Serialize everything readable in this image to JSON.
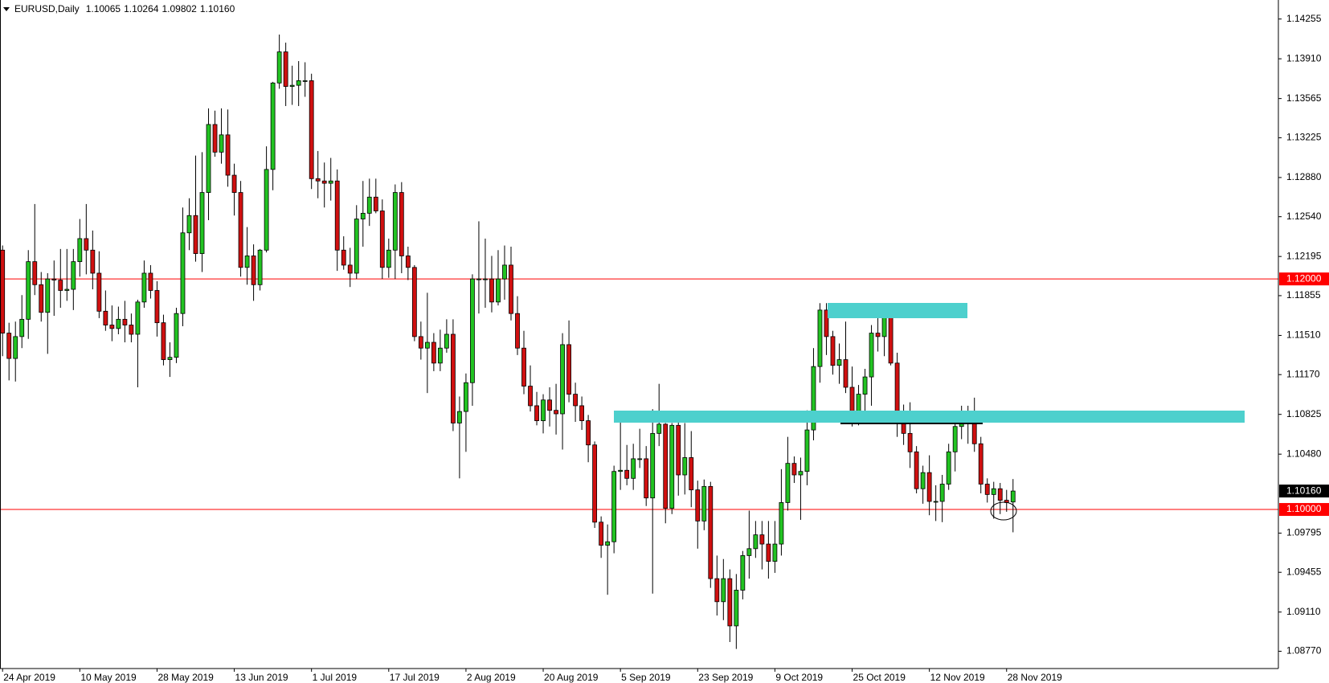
{
  "chart_data": {
    "type": "candlestick",
    "symbol": "EURUSD,Daily",
    "quote": [
      {
        "value": 1.10065,
        "label": "1.10065"
      },
      {
        "value": 1.10264,
        "label": "1.10264"
      },
      {
        "value": 1.09802,
        "label": "1.09802"
      },
      {
        "value": 1.1016,
        "label": "1.10160"
      }
    ],
    "up_color": "#22c322",
    "down_color": "#d01010",
    "ylim": [
      1.0862,
      1.1442
    ],
    "yticks": [
      1.14255,
      {
        "value": 1.1391,
        "label": "1.13910"
      },
      1.13565,
      1.13225,
      {
        "value": 1.1288,
        "label": "1.12880"
      },
      {
        "value": 1.1254,
        "label": "1.12540"
      },
      1.12195,
      1.11855,
      {
        "value": 1.1151,
        "label": "1.11510"
      },
      {
        "value": 1.1117,
        "label": "1.11170"
      },
      1.10825,
      {
        "value": 1.1048,
        "label": "1.10480"
      },
      1.09795,
      1.09455,
      {
        "value": 1.0911,
        "label": "1.09110"
      },
      {
        "value": 1.0877,
        "label": "1.08770"
      }
    ],
    "hlines": [
      {
        "value": 1.12,
        "label": "1.12000",
        "color": "#ff0000"
      },
      {
        "value": 1.1,
        "label": "1.10000",
        "color": "#ff0000"
      }
    ],
    "last_price": {
      "value": 1.1016,
      "label": "1.10160"
    },
    "categories": [
      "24 Apr 2019",
      null,
      null,
      null,
      null,
      null,
      null,
      null,
      null,
      null,
      null,
      null,
      "10 May 2019",
      null,
      null,
      null,
      null,
      null,
      null,
      null,
      null,
      null,
      null,
      null,
      "28 May 2019",
      null,
      null,
      null,
      null,
      null,
      null,
      null,
      null,
      null,
      null,
      null,
      "13 Jun 2019",
      null,
      null,
      null,
      null,
      null,
      null,
      null,
      null,
      null,
      null,
      null,
      "1 Jul 2019",
      null,
      null,
      null,
      null,
      null,
      null,
      null,
      null,
      null,
      null,
      null,
      "17 Jul 2019",
      null,
      null,
      null,
      null,
      null,
      null,
      null,
      null,
      null,
      null,
      null,
      "2 Aug 2019",
      null,
      null,
      null,
      null,
      null,
      null,
      null,
      null,
      null,
      null,
      null,
      "20 Aug 2019",
      null,
      null,
      null,
      null,
      null,
      null,
      null,
      null,
      null,
      null,
      null,
      "5 Sep 2019",
      null,
      null,
      null,
      null,
      null,
      null,
      null,
      null,
      null,
      null,
      null,
      "23 Sep 2019",
      null,
      null,
      null,
      null,
      null,
      null,
      null,
      null,
      null,
      null,
      null,
      "9 Oct 2019",
      null,
      null,
      null,
      null,
      null,
      null,
      null,
      null,
      null,
      null,
      null,
      "25 Oct 2019",
      null,
      null,
      null,
      null,
      null,
      null,
      null,
      null,
      null,
      null,
      null,
      "12 Nov 2019",
      null,
      null,
      null,
      null,
      null,
      null,
      null,
      null,
      null,
      null,
      null,
      "28 Nov 2019",
      null
    ],
    "open": [
      1.1225,
      1.1153,
      1.1131,
      1.115,
      1.1165,
      1.1215,
      1.1195,
      1.1171,
      1.12,
      1.1199,
      1.119,
      1.1191,
      1.1215,
      1.1235,
      1.1225,
      1.1205,
      1.1172,
      1.116,
      1.1157,
      1.1165,
      1.116,
      1.1152,
      1.118,
      1.1205,
      1.119,
      1.1162,
      1.113,
      1.1132,
      1.117,
      1.124,
      1.1255,
      1.1222,
      1.1275,
      1.1334,
      1.131,
      1.1325,
      1.129,
      1.1275,
      1.121,
      1.122,
      1.1195,
      1.1225,
      1.1295,
      1.137,
      1.1397,
      1.1367,
      1.1368,
      1.1372,
      1.1372,
      1.1287,
      1.1285,
      1.1283,
      1.1285,
      1.1225,
      1.1212,
      1.1205,
      1.1252,
      1.1257,
      1.1271,
      1.1259,
      1.121,
      1.1225,
      1.1275,
      1.122,
      1.121,
      1.115,
      1.114,
      1.1145,
      1.1127,
      1.114,
      1.1152,
      1.1075,
      1.1085,
      1.111,
      1.12,
      1.12,
      1.12,
      1.118,
      1.12,
      1.1212,
      1.117,
      1.114,
      1.1107,
      1.109,
      1.1077,
      1.1095,
      1.1086,
      1.1083,
      1.1143,
      1.11,
      1.109,
      1.1077,
      1.1056,
      1.0989,
      1.0969,
      1.0972,
      1.1033,
      1.1034,
      1.1027,
      1.1044,
      1.1044,
      1.101,
      1.1066,
      1.1074,
      1.1001,
      1.1073,
      1.103,
      1.1045,
      1.1017,
      1.099,
      1.102,
      1.094,
      1.092,
      1.094,
      1.0899,
      1.093,
      1.096,
      1.0966,
      1.0978,
      1.097,
      1.0955,
      1.097,
      1.1006,
      1.104,
      1.103,
      1.1033,
      1.1069,
      1.1124,
      1.1173,
      1.115,
      1.1125,
      1.113,
      1.1106,
      1.108,
      1.11,
      1.1115,
      1.1153,
      1.115,
      1.1167,
      1.1127,
      1.1075,
      1.1066,
      1.105,
      1.1018,
      1.1032,
      1.1007,
      1.1007,
      1.1022,
      1.105,
      1.1072,
      1.1077,
      1.1076,
      1.1057,
      1.1022,
      1.1013,
      1.1018,
      1.1008,
      1.10065
    ],
    "high": [
      1.1229,
      1.1162,
      1.1163,
      1.1186,
      1.1225,
      1.1265,
      1.1206,
      1.1205,
      1.1216,
      1.1226,
      1.1226,
      1.1226,
      1.1252,
      1.1265,
      1.1242,
      1.1224,
      1.119,
      1.1177,
      1.1176,
      1.1181,
      1.117,
      1.1182,
      1.1216,
      1.1212,
      1.1198,
      1.1169,
      1.1145,
      1.1175,
      1.1262,
      1.127,
      1.1307,
      1.131,
      1.1348,
      1.1346,
      1.1348,
      1.1347,
      1.13,
      1.1285,
      1.1245,
      1.123,
      1.1226,
      1.1315,
      1.1371,
      1.1412,
      1.1405,
      1.1385,
      1.1389,
      1.1388,
      1.1378,
      1.1311,
      1.1301,
      1.1305,
      1.1295,
      1.1237,
      1.1227,
      1.1264,
      1.1285,
      1.1287,
      1.1287,
      1.1269,
      1.1235,
      1.1282,
      1.1284,
      1.1228,
      1.1212,
      1.1163,
      1.1188,
      1.1153,
      1.1156,
      1.1165,
      1.1165,
      1.1098,
      1.1118,
      1.1204,
      1.125,
      1.1235,
      1.122,
      1.1225,
      1.1229,
      1.1228,
      1.1185,
      1.1155,
      1.1125,
      1.1102,
      1.11,
      1.1106,
      1.1109,
      1.1153,
      1.1164,
      1.111,
      1.1098,
      1.1082,
      1.1059,
      1.0994,
      1.0987,
      1.1038,
      1.1085,
      1.1056,
      1.1057,
      1.107,
      1.1055,
      1.1087,
      1.1109,
      1.1075,
      1.1075,
      1.1076,
      1.1075,
      1.1068,
      1.1025,
      1.1026,
      1.1024,
      1.096,
      1.0957,
      1.0948,
      1.0944,
      1.0964,
      1.0999,
      1.099,
      1.099,
      1.099,
      1.099,
      1.1035,
      1.1063,
      1.1046,
      1.1045,
      1.1086,
      1.114,
      1.1179,
      1.1179,
      1.1155,
      1.1144,
      1.1163,
      1.1124,
      1.1108,
      1.1122,
      1.116,
      1.1175,
      1.1176,
      1.1175,
      1.1136,
      1.1091,
      1.1093,
      1.1055,
      1.1038,
      1.1047,
      1.1021,
      1.103,
      1.1057,
      1.1075,
      1.109,
      1.109,
      1.1097,
      1.1063,
      1.1027,
      1.1024,
      1.1023,
      1.1017,
      1.10264
    ],
    "low": [
      1.1133,
      1.1112,
      1.1111,
      1.114,
      1.1148,
      1.1186,
      1.1163,
      1.1135,
      1.1168,
      1.1175,
      1.1181,
      1.1173,
      1.1202,
      1.1204,
      1.1191,
      1.1166,
      1.1155,
      1.1146,
      1.1152,
      1.1145,
      1.1145,
      1.1106,
      1.1175,
      1.1183,
      1.115,
      1.1125,
      1.1115,
      1.1127,
      1.1159,
      1.1225,
      1.1215,
      1.1206,
      1.1251,
      1.1306,
      1.13,
      1.128,
      1.1255,
      1.1202,
      1.1195,
      1.1181,
      1.119,
      1.1223,
      1.1277,
      1.1365,
      1.135,
      1.1351,
      1.135,
      1.1358,
      1.1278,
      1.127,
      1.1262,
      1.1268,
      1.1207,
      1.1208,
      1.1193,
      1.12,
      1.1228,
      1.1246,
      1.1257,
      1.12,
      1.1201,
      1.12,
      1.1205,
      1.1199,
      1.1146,
      1.113,
      1.1101,
      1.112,
      1.112,
      1.1136,
      1.1068,
      1.1027,
      1.105,
      1.109,
      1.117,
      1.1175,
      1.1171,
      1.1177,
      1.1182,
      1.1164,
      1.1134,
      1.11,
      1.1085,
      1.1073,
      1.1066,
      1.1072,
      1.1065,
      1.1052,
      1.1093,
      1.1076,
      1.1069,
      1.1041,
      1.0984,
      1.0958,
      1.0926,
      1.0962,
      1.1017,
      1.1021,
      1.1017,
      1.1036,
      1.1003,
      1.0927,
      1.1055,
      1.0988,
      1.0996,
      1.1012,
      1.1013,
      1.1002,
      1.0966,
      1.0982,
      1.0932,
      1.0908,
      1.0904,
      1.0885,
      1.0879,
      1.0922,
      1.094,
      1.0958,
      1.0948,
      1.094,
      1.0945,
      1.096,
      1.0999,
      1.1023,
      1.0991,
      1.1021,
      1.106,
      1.111,
      1.1134,
      1.1117,
      1.1109,
      1.1101,
      1.1072,
      1.1073,
      1.1085,
      1.109,
      1.1137,
      1.1133,
      1.1125,
      1.1063,
      1.1056,
      1.1036,
      1.1014,
      1.1005,
      1.0995,
      1.099,
      1.0989,
      1.1017,
      1.1033,
      1.1061,
      1.1057,
      1.105,
      1.1014,
      1.1006,
      1.0992,
      1.0996,
      1.0998,
      1.09802
    ],
    "close": [
      1.1153,
      1.1131,
      1.115,
      1.1165,
      1.1215,
      1.1195,
      1.1171,
      1.12,
      1.1199,
      1.119,
      1.1191,
      1.1215,
      1.1235,
      1.1225,
      1.1205,
      1.1172,
      1.116,
      1.1157,
      1.1165,
      1.116,
      1.1152,
      1.118,
      1.1205,
      1.119,
      1.1162,
      1.113,
      1.1132,
      1.117,
      1.124,
      1.1255,
      1.1222,
      1.1275,
      1.1334,
      1.131,
      1.1325,
      1.129,
      1.1275,
      1.121,
      1.122,
      1.1195,
      1.1225,
      1.1295,
      1.137,
      1.1397,
      1.1367,
      1.1368,
      1.1372,
      1.1372,
      1.1287,
      1.1285,
      1.1283,
      1.1285,
      1.1225,
      1.1212,
      1.1205,
      1.1252,
      1.1257,
      1.1271,
      1.1259,
      1.121,
      1.1225,
      1.1275,
      1.122,
      1.121,
      1.115,
      1.114,
      1.1145,
      1.1127,
      1.114,
      1.1152,
      1.1075,
      1.1085,
      1.111,
      1.12,
      1.12,
      1.12,
      1.118,
      1.12,
      1.1212,
      1.117,
      1.114,
      1.1107,
      1.109,
      1.1077,
      1.1095,
      1.1086,
      1.1083,
      1.1143,
      1.11,
      1.109,
      1.1077,
      1.1056,
      1.0989,
      1.0969,
      1.0972,
      1.1033,
      1.1034,
      1.1027,
      1.1044,
      1.1044,
      1.101,
      1.1066,
      1.1074,
      1.1001,
      1.1073,
      1.103,
      1.1045,
      1.1017,
      1.099,
      1.102,
      1.094,
      1.092,
      1.094,
      1.0899,
      1.093,
      1.096,
      1.0966,
      1.0978,
      1.097,
      1.0955,
      1.097,
      1.1006,
      1.104,
      1.103,
      1.1033,
      1.1069,
      1.1124,
      1.1173,
      1.115,
      1.1125,
      1.113,
      1.1106,
      1.108,
      1.11,
      1.1115,
      1.1153,
      1.115,
      1.1167,
      1.1127,
      1.1075,
      1.1066,
      1.105,
      1.1018,
      1.1032,
      1.1007,
      1.1007,
      1.1022,
      1.105,
      1.1072,
      1.1077,
      1.1076,
      1.1057,
      1.1022,
      1.1013,
      1.1018,
      1.1008,
      1.1006,
      1.1016
    ]
  }
}
